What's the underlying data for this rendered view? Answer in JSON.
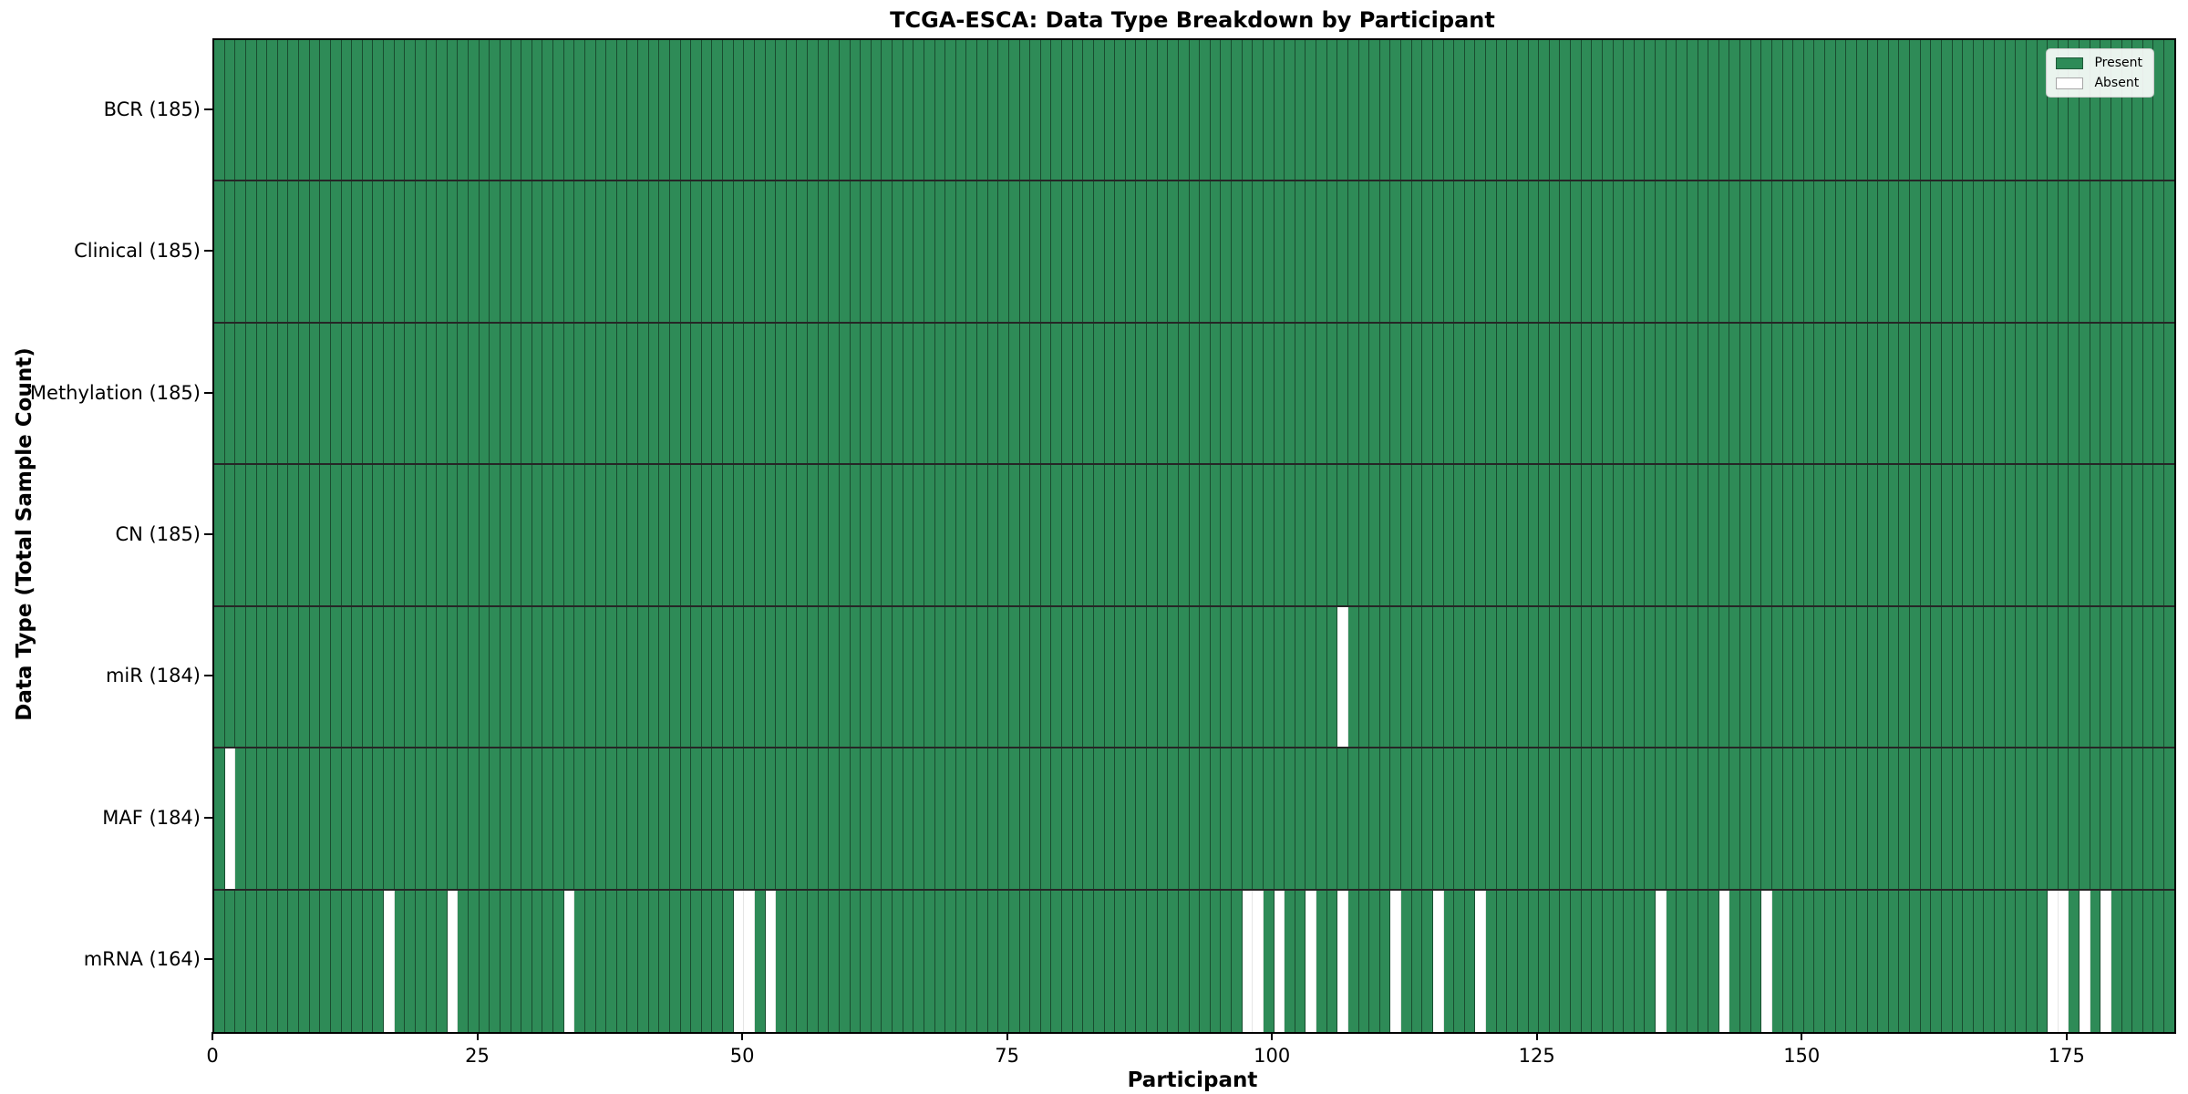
{
  "title": "TCGA-ESCA: Data Type Breakdown by Participant",
  "chart_data": {
    "type": "heatmap",
    "title": "TCGA-ESCA: Data Type Breakdown by Participant",
    "xlabel": "Participant",
    "ylabel": "Data Type (Total Sample Count)",
    "n_participants": 185,
    "x_ticks": [
      0,
      25,
      50,
      75,
      100,
      125,
      150,
      175
    ],
    "x_tick_alignment": "cell-left-edge",
    "grid": false,
    "legend_position": "upper right",
    "legend": [
      {
        "label": "Present",
        "color": "#2e8b57"
      },
      {
        "label": "Absent",
        "color": "#ffffff"
      }
    ],
    "colors": {
      "present": "#2e8b57",
      "absent": "#ffffff",
      "bar_edge": "rgba(0,0,0,0.45)",
      "frame": "#000000"
    },
    "rows": [
      {
        "label": "BCR (185)",
        "name": "BCR",
        "total_samples": 185,
        "absent_participants": []
      },
      {
        "label": "Clinical (185)",
        "name": "Clinical",
        "total_samples": 185,
        "absent_participants": []
      },
      {
        "label": "Methylation (185)",
        "name": "Methylation",
        "total_samples": 185,
        "absent_participants": []
      },
      {
        "label": "CN (185)",
        "name": "CN",
        "total_samples": 185,
        "absent_participants": []
      },
      {
        "label": "miR (184)",
        "name": "miR",
        "total_samples": 184,
        "absent_participants": [
          106
        ]
      },
      {
        "label": "MAF (184)",
        "name": "MAF",
        "total_samples": 184,
        "absent_participants": [
          1
        ]
      },
      {
        "label": "mRNA (164)",
        "name": "mRNA",
        "total_samples": 164,
        "absent_participants": [
          16,
          22,
          33,
          49,
          50,
          52,
          97,
          98,
          100,
          103,
          106,
          111,
          115,
          119,
          136,
          142,
          146,
          173,
          174,
          176,
          178
        ]
      }
    ]
  }
}
